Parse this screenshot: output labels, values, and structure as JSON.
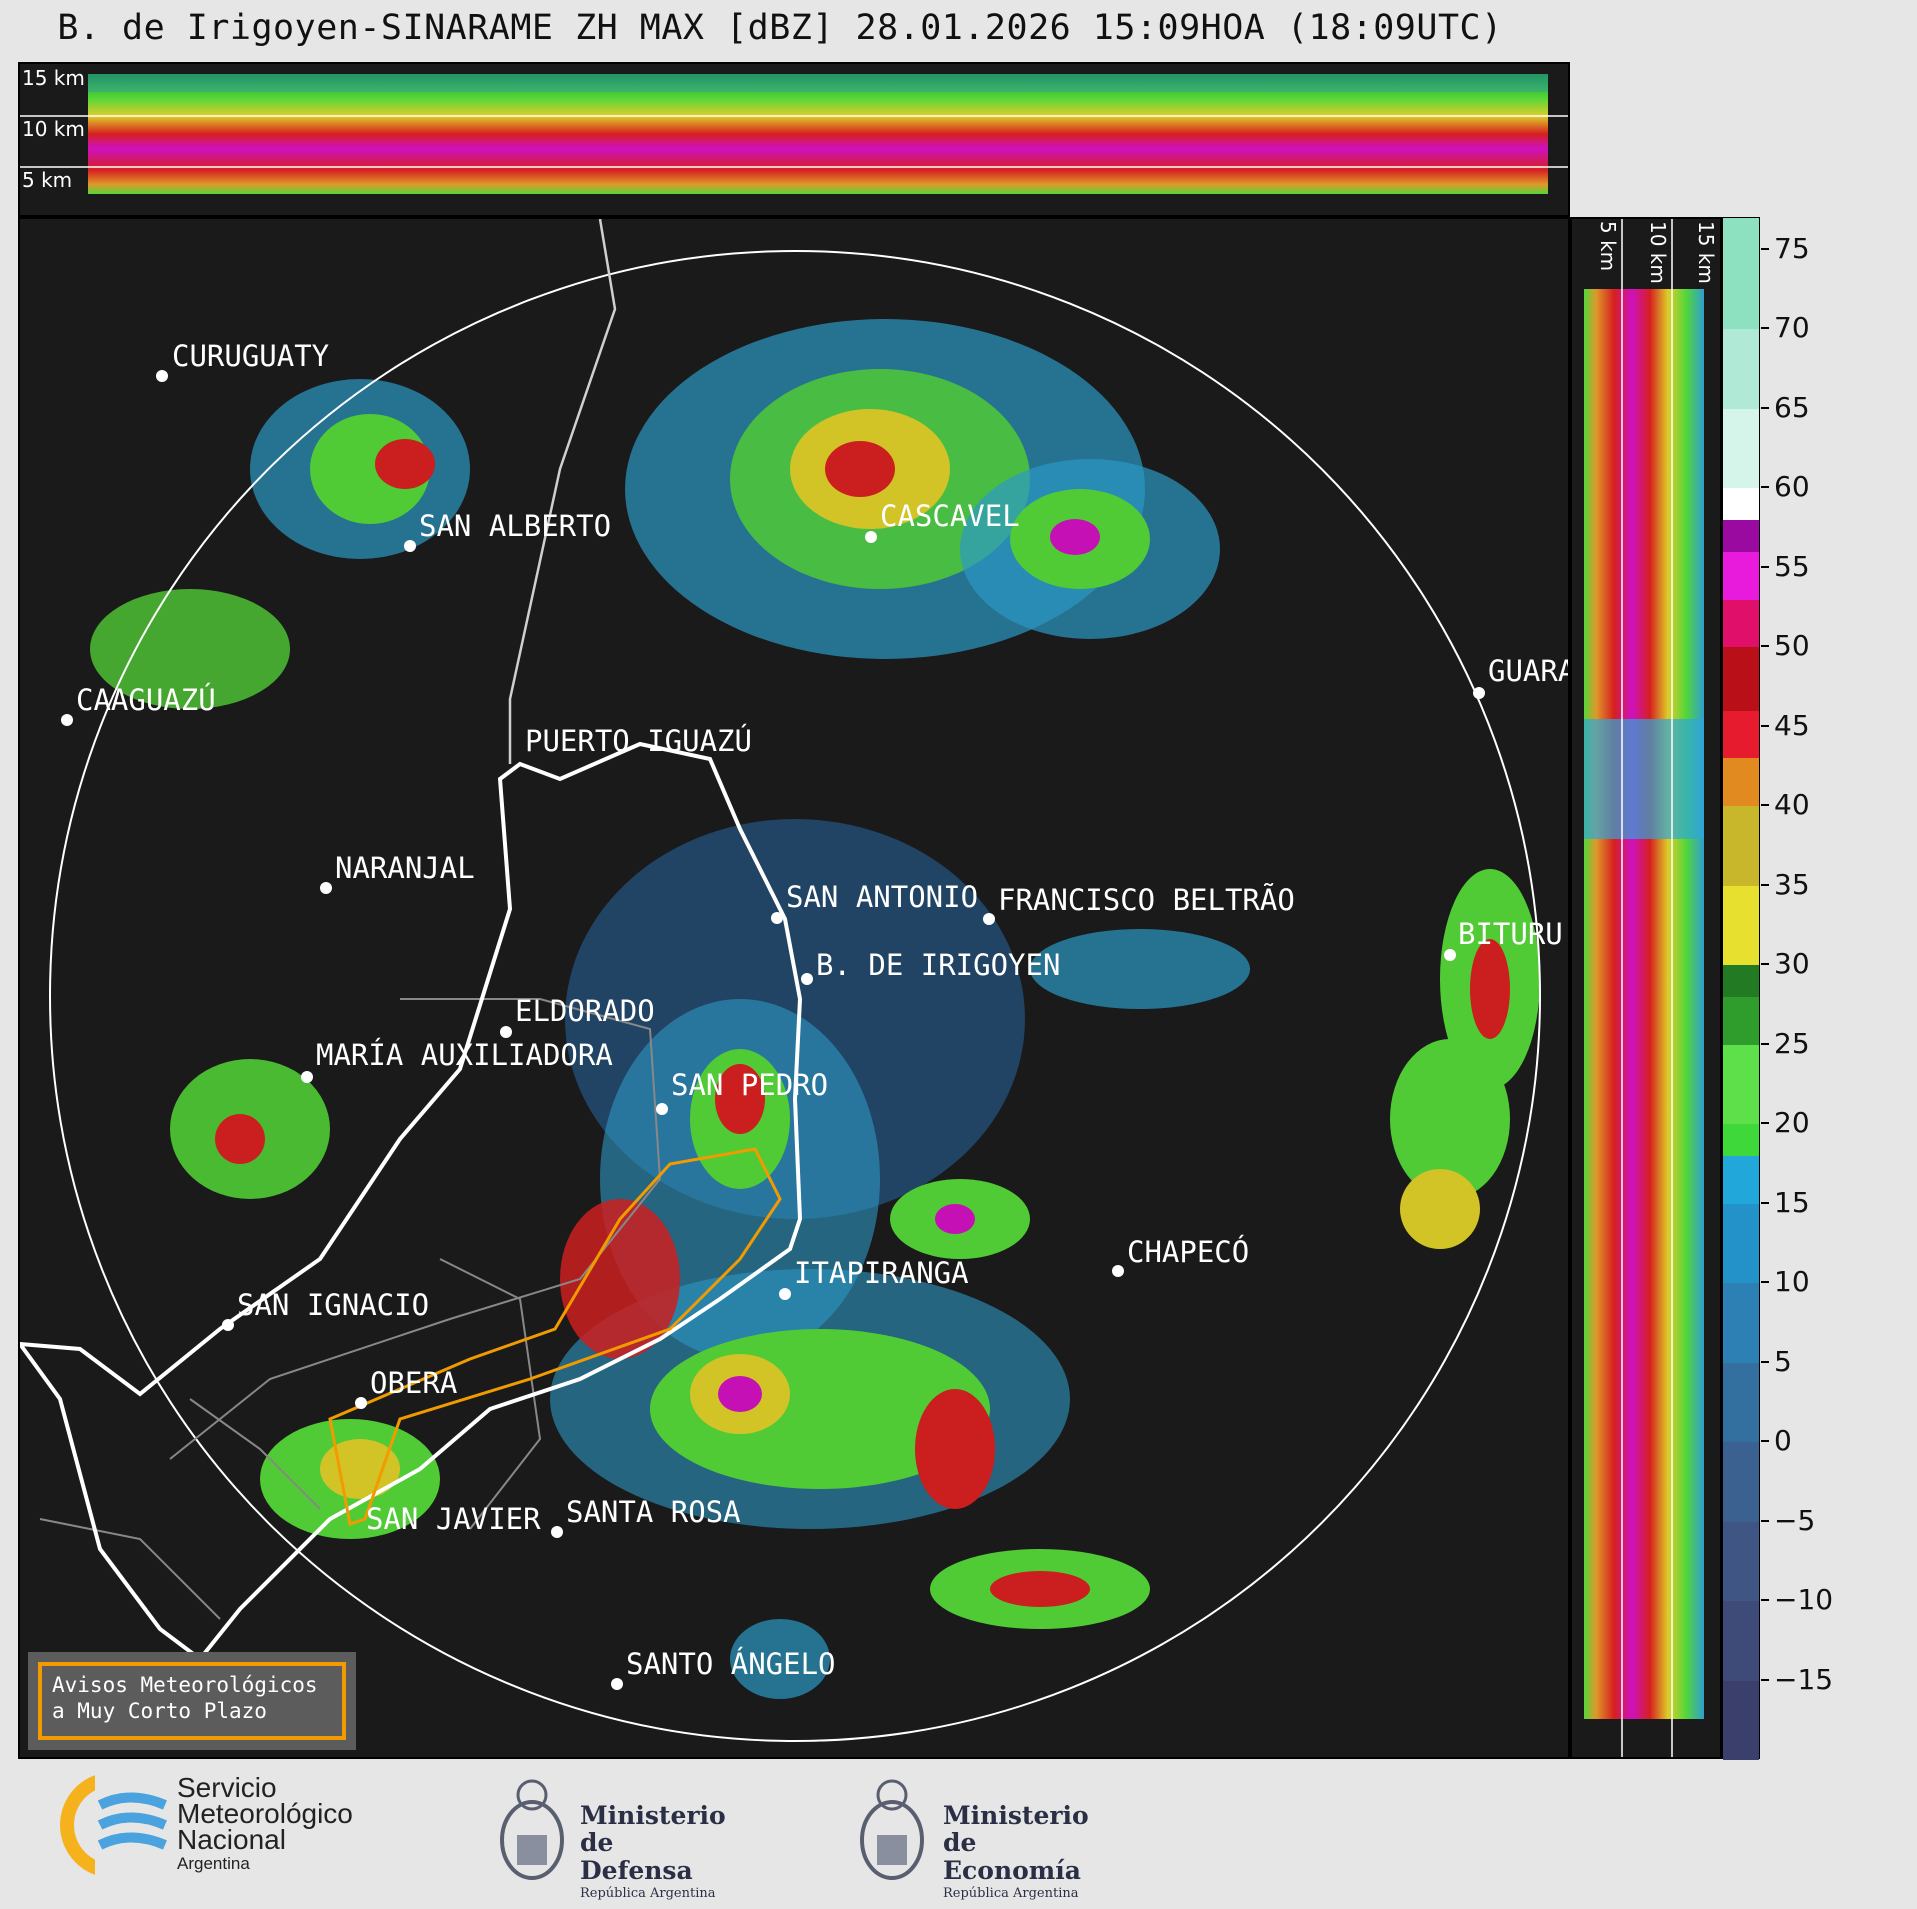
{
  "header": {
    "title": "B. de Irigoyen-SINARAME ZH MAX [dBZ] 28.01.2026 15:09HOA (18:09UTC)"
  },
  "top_profile": {
    "km_labels": [
      "15 km",
      "10 km",
      "5 km"
    ]
  },
  "side_profile": {
    "km_labels": [
      "5 km",
      "10 km",
      "15 km"
    ]
  },
  "cities": [
    {
      "name": "CURUGUATY"
    },
    {
      "name": "SAN ALBERTO"
    },
    {
      "name": "CASCAVEL"
    },
    {
      "name": "CAAGUAZÚ"
    },
    {
      "name": "GUARA"
    },
    {
      "name": "PUERTO IGUAZÚ"
    },
    {
      "name": "NARANJAL"
    },
    {
      "name": "SAN ANTONIO"
    },
    {
      "name": "FRANCISCO BELTRÃO"
    },
    {
      "name": "BITURU"
    },
    {
      "name": "B. DE IRIGOYEN"
    },
    {
      "name": "ELDORADO"
    },
    {
      "name": "MARÍA AUXILIADORA"
    },
    {
      "name": "SAN PEDRO"
    },
    {
      "name": "CHAPECÓ"
    },
    {
      "name": "ITAPIRANGA"
    },
    {
      "name": "SAN IGNACIO"
    },
    {
      "name": "OBERA"
    },
    {
      "name": "SAN JAVIER"
    },
    {
      "name": "SANTA ROSA"
    },
    {
      "name": "SANTO ÁNGELO"
    }
  ],
  "colorbar": {
    "unit": "dBZ",
    "ticks": [
      "75",
      "70",
      "65",
      "60",
      "55",
      "50",
      "45",
      "40",
      "35",
      "30",
      "25",
      "20",
      "15",
      "10",
      "5",
      "0",
      "−5",
      "−10",
      "−15"
    ],
    "tick_values": [
      75,
      70,
      65,
      60,
      55,
      50,
      45,
      40,
      35,
      30,
      25,
      20,
      15,
      10,
      5,
      0,
      -5,
      -10,
      -15
    ],
    "range": [
      -20,
      77
    ]
  },
  "avisos": {
    "text": "Avisos Meteorológicos\na Muy Corto Plazo",
    "border_color": "#f29b00"
  },
  "logos": {
    "smn": {
      "line1": "Servicio",
      "line2": "Meteorológico",
      "line3": "Nacional",
      "line4": "Argentina"
    },
    "defensa": {
      "line1": "Ministerio",
      "line2": "de Defensa",
      "line3": "República Argentina"
    },
    "economia": {
      "line1": "Ministerio",
      "line2": "de Economía",
      "line3": "República Argentina"
    }
  },
  "colors": {
    "background_map": "#1a1a1a",
    "range_ring": "#ffffff",
    "border_line": "#ffffff",
    "warning_polygon": "#f29b00"
  }
}
